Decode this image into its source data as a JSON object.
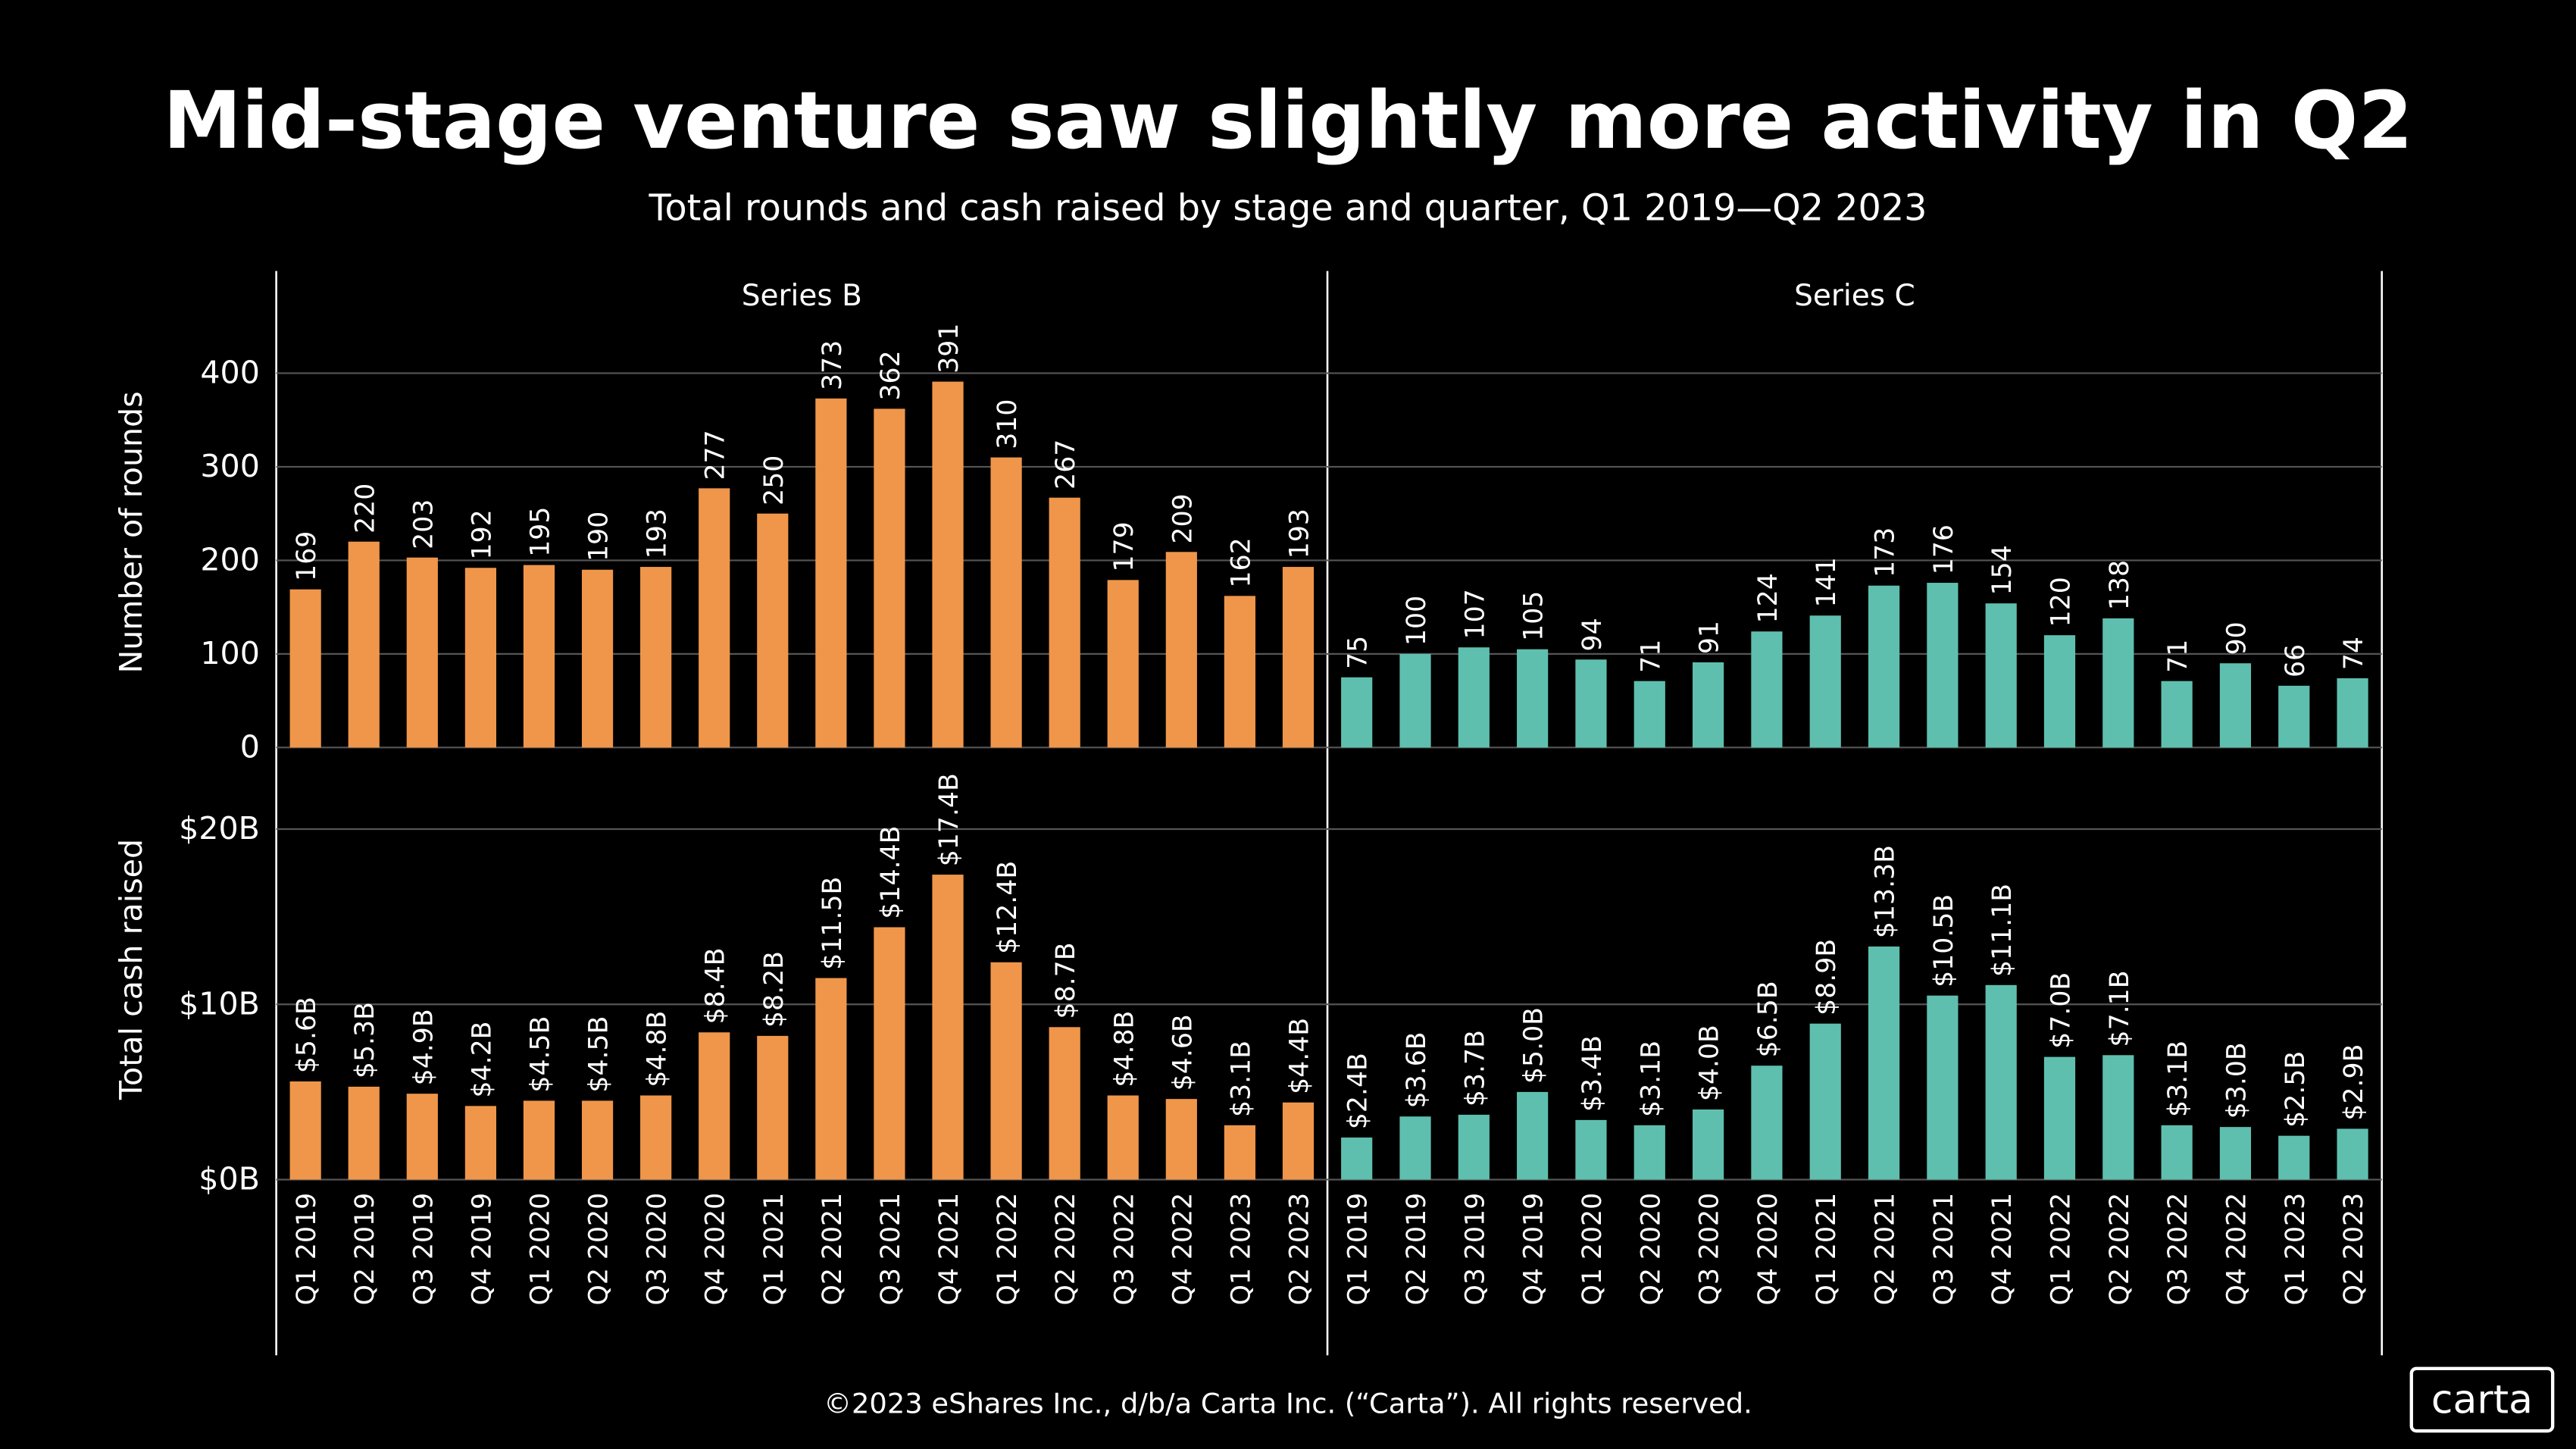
{
  "title": "Mid-stage venture saw slightly more activity in Q2",
  "subtitle": "Total rounds and cash raised by stage and quarter, Q1 2019—Q2 2023",
  "footer": "©2023 eShares Inc., d/b/a Carta Inc. (“Carta”). All rights reserved.",
  "logo": "carta",
  "chart_data": [
    {
      "type": "bar",
      "facet": "Series B",
      "ylabel": "Number of rounds",
      "color": "#f0964a",
      "values": [
        169,
        220,
        203,
        192,
        195,
        190,
        193,
        277,
        250,
        373,
        362,
        391,
        310,
        267,
        179,
        209,
        162,
        193
      ],
      "ylim": [
        0,
        460
      ],
      "yticks": [
        0,
        100,
        200,
        300,
        400
      ],
      "grid": true
    },
    {
      "type": "bar",
      "facet": "Series C",
      "color": "#5fbfae",
      "values": [
        75,
        100,
        107,
        105,
        94,
        71,
        91,
        124,
        141,
        173,
        176,
        154,
        120,
        138,
        71,
        90,
        66,
        74
      ]
    },
    {
      "type": "bar",
      "ylabel": "Total cash raised",
      "color": "#f0964a",
      "categories": [
        "Q1 2019",
        "Q2 2019",
        "Q3 2019",
        "Q4 2019",
        "Q1 2020",
        "Q2 2020",
        "Q3 2020",
        "Q4 2020",
        "Q1 2021",
        "Q2 2021",
        "Q3 2021",
        "Q4 2021",
        "Q1 2022",
        "Q2 2022",
        "Q3 2022",
        "Q4 2022",
        "Q1 2023",
        "Q2 2023"
      ],
      "values": [
        5.6,
        5.3,
        4.9,
        4.2,
        4.5,
        4.5,
        4.8,
        8.4,
        8.2,
        11.5,
        14.4,
        17.4,
        12.4,
        8.7,
        4.8,
        4.6,
        3.1,
        4.4
      ],
      "value_labels": [
        "$5.6B",
        "$5.3B",
        "$4.9B",
        "$4.2B",
        "$4.5B",
        "$4.5B",
        "$4.8B",
        "$8.4B",
        "$8.2B",
        "$11.5B",
        "$14.4B",
        "$17.4B",
        "$12.4B",
        "$8.7B",
        "$4.8B",
        "$4.6B",
        "$3.1B",
        "$4.4B"
      ],
      "ylim": [
        0,
        24
      ],
      "yticks": [
        {
          "value": 0,
          "label": "$0B"
        },
        {
          "value": 10,
          "label": "$10B"
        },
        {
          "value": 20,
          "label": "$20B"
        }
      ],
      "grid": true
    },
    {
      "type": "bar",
      "color": "#5fbfae",
      "categories": [
        "Q1 2019",
        "Q2 2019",
        "Q3 2019",
        "Q4 2019",
        "Q1 2020",
        "Q2 2020",
        "Q3 2020",
        "Q4 2020",
        "Q1 2021",
        "Q2 2021",
        "Q3 2021",
        "Q4 2021",
        "Q1 2022",
        "Q2 2022",
        "Q3 2022",
        "Q4 2022",
        "Q1 2023",
        "Q2 2023"
      ],
      "values": [
        2.4,
        3.6,
        3.7,
        5.0,
        3.4,
        3.1,
        4.0,
        6.5,
        8.9,
        13.3,
        10.5,
        11.1,
        7.0,
        7.1,
        3.1,
        3.0,
        2.5,
        2.9
      ],
      "value_labels": [
        "$2.4B",
        "$3.6B",
        "$3.7B",
        "$5.0B",
        "$3.4B",
        "$3.1B",
        "$4.0B",
        "$6.5B",
        "$8.9B",
        "$13.3B",
        "$10.5B",
        "$11.1B",
        "$7.0B",
        "$7.1B",
        "$3.1B",
        "$3.0B",
        "$2.5B",
        "$2.9B"
      ]
    }
  ]
}
